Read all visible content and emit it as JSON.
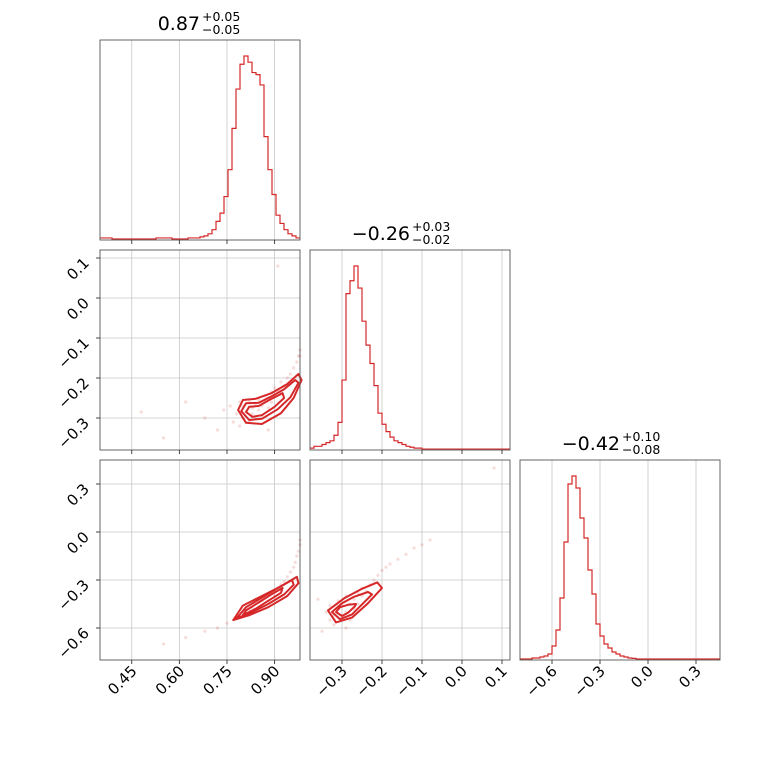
{
  "chart_data": {
    "type": "corner",
    "color": "#d62728",
    "parameters": [
      {
        "title": {
          "median": "0.87",
          "upper": "+0.05",
          "lower": "−0.05"
        },
        "range": [
          0.35,
          0.98
        ],
        "ticks": [
          0.45,
          0.6,
          0.75,
          0.9
        ],
        "tick_labels": [
          "0.45",
          "0.60",
          "0.75",
          "0.90"
        ],
        "histogram": {
          "bins": [
            0.35,
            0.98
          ],
          "counts": [
            0.01,
            0.01,
            0.01,
            0.005,
            0.005,
            0.005,
            0.005,
            0.005,
            0.005,
            0.005,
            0.005,
            0.005,
            0.005,
            0.005,
            0.01,
            0.01,
            0.01,
            0.01,
            0.005,
            0.005,
            0.005,
            0.005,
            0.01,
            0.01,
            0.01,
            0.015,
            0.02,
            0.03,
            0.05,
            0.09,
            0.13,
            0.21,
            0.34,
            0.54,
            0.73,
            0.85,
            0.89,
            0.86,
            0.81,
            0.8,
            0.75,
            0.5,
            0.34,
            0.22,
            0.12,
            0.08,
            0.05,
            0.03,
            0.02,
            0.01
          ]
        }
      },
      {
        "title": {
          "median": "−0.26",
          "upper": "+0.03",
          "lower": "−0.02"
        },
        "range": [
          -0.38,
          0.12
        ],
        "ticks": [
          -0.3,
          -0.2,
          -0.1,
          0.0,
          0.1
        ],
        "tick_labels": [
          "−0.3",
          "−0.2",
          "−0.1",
          "0.0",
          "0.1"
        ],
        "histogram": {
          "bins": [
            -0.38,
            0.12
          ],
          "counts": [
            0.01,
            0.02,
            0.02,
            0.03,
            0.04,
            0.05,
            0.08,
            0.15,
            0.38,
            0.85,
            0.92,
            1.0,
            0.88,
            0.7,
            0.57,
            0.47,
            0.35,
            0.2,
            0.14,
            0.1,
            0.07,
            0.05,
            0.04,
            0.03,
            0.02,
            0.015,
            0.01,
            0.01,
            0.005,
            0.005,
            0.005,
            0.005,
            0.005,
            0.005,
            0.005,
            0.005,
            0.005,
            0.005,
            0.005,
            0.005,
            0.005,
            0.005,
            0.005,
            0.005,
            0.005,
            0.005,
            0.005,
            0.005,
            0.005,
            0.005
          ]
        }
      },
      {
        "title": {
          "median": "−0.42",
          "upper": "+0.10",
          "lower": "−0.08"
        },
        "range": [
          -0.8,
          0.45
        ],
        "ticks": [
          -0.6,
          -0.3,
          0.0,
          0.3
        ],
        "tick_labels": [
          "−0.6",
          "−0.3",
          "0.0",
          "0.3"
        ],
        "histogram": {
          "bins": [
            -0.8,
            0.45
          ],
          "counts": [
            0.005,
            0.005,
            0.005,
            0.01,
            0.01,
            0.015,
            0.02,
            0.03,
            0.07,
            0.15,
            0.31,
            0.59,
            0.88,
            0.92,
            0.86,
            0.71,
            0.61,
            0.45,
            0.33,
            0.18,
            0.12,
            0.08,
            0.06,
            0.04,
            0.03,
            0.02,
            0.015,
            0.01,
            0.008,
            0.005,
            0.005,
            0.005,
            0.005,
            0.005,
            0.005,
            0.005,
            0.005,
            0.005,
            0.005,
            0.005,
            0.005,
            0.005,
            0.005,
            0.005,
            0.005,
            0.005,
            0.005,
            0.005,
            0.005,
            0.005
          ]
        }
      }
    ],
    "pairs": [
      {
        "x_param": 0,
        "y_param": 1,
        "scatter": [
          [
            0.48,
            -0.285
          ],
          [
            0.55,
            -0.35
          ],
          [
            0.62,
            -0.26
          ],
          [
            0.68,
            -0.3
          ],
          [
            0.72,
            -0.33
          ],
          [
            0.74,
            -0.28
          ],
          [
            0.76,
            -0.27
          ],
          [
            0.77,
            -0.31
          ],
          [
            0.78,
            -0.29
          ],
          [
            0.79,
            -0.26
          ],
          [
            0.8,
            -0.3
          ],
          [
            0.8,
            -0.27
          ],
          [
            0.81,
            -0.285
          ],
          [
            0.82,
            -0.31
          ],
          [
            0.82,
            -0.26
          ],
          [
            0.83,
            -0.29
          ],
          [
            0.83,
            -0.275
          ],
          [
            0.84,
            -0.3
          ],
          [
            0.84,
            -0.265
          ],
          [
            0.85,
            -0.28
          ],
          [
            0.85,
            -0.255
          ],
          [
            0.86,
            -0.27
          ],
          [
            0.86,
            -0.295
          ],
          [
            0.87,
            -0.26
          ],
          [
            0.87,
            -0.245
          ],
          [
            0.88,
            -0.275
          ],
          [
            0.88,
            -0.25
          ],
          [
            0.89,
            -0.26
          ],
          [
            0.89,
            -0.235
          ],
          [
            0.9,
            -0.245
          ],
          [
            0.9,
            -0.225
          ],
          [
            0.91,
            -0.23
          ],
          [
            0.92,
            -0.235
          ],
          [
            0.92,
            -0.21
          ],
          [
            0.93,
            -0.22
          ],
          [
            0.94,
            -0.2
          ],
          [
            0.95,
            -0.19
          ],
          [
            0.96,
            -0.175
          ],
          [
            0.97,
            -0.16
          ],
          [
            0.975,
            -0.145
          ],
          [
            0.98,
            -0.13
          ],
          [
            0.98,
            -0.145
          ],
          [
            0.91,
            0.08
          ],
          [
            0.88,
            -0.33
          ],
          [
            0.79,
            -0.32
          ]
        ],
        "contours": [
          [
            [
              0.81,
              -0.285
            ],
            [
              0.83,
              -0.297
            ],
            [
              0.86,
              -0.293
            ],
            [
              0.9,
              -0.272
            ],
            [
              0.93,
              -0.25
            ],
            [
              0.925,
              -0.238
            ],
            [
              0.89,
              -0.252
            ],
            [
              0.85,
              -0.27
            ],
            [
              0.82,
              -0.272
            ],
            [
              0.81,
              -0.285
            ]
          ],
          [
            [
              0.795,
              -0.283
            ],
            [
              0.82,
              -0.305
            ],
            [
              0.86,
              -0.302
            ],
            [
              0.91,
              -0.278
            ],
            [
              0.95,
              -0.248
            ],
            [
              0.975,
              -0.212
            ],
            [
              0.965,
              -0.205
            ],
            [
              0.93,
              -0.228
            ],
            [
              0.89,
              -0.246
            ],
            [
              0.85,
              -0.262
            ],
            [
              0.81,
              -0.263
            ],
            [
              0.795,
              -0.283
            ]
          ],
          [
            [
              0.785,
              -0.28
            ],
            [
              0.81,
              -0.312
            ],
            [
              0.86,
              -0.315
            ],
            [
              0.92,
              -0.288
            ],
            [
              0.96,
              -0.25
            ],
            [
              0.985,
              -0.205
            ],
            [
              0.975,
              -0.19
            ],
            [
              0.94,
              -0.215
            ],
            [
              0.89,
              -0.238
            ],
            [
              0.84,
              -0.252
            ],
            [
              0.8,
              -0.255
            ],
            [
              0.785,
              -0.28
            ]
          ]
        ]
      },
      {
        "x_param": 0,
        "y_param": 2,
        "scatter": [
          [
            0.55,
            -0.7
          ],
          [
            0.62,
            -0.66
          ],
          [
            0.68,
            -0.62
          ],
          [
            0.72,
            -0.6
          ],
          [
            0.75,
            -0.57
          ],
          [
            0.77,
            -0.55
          ],
          [
            0.78,
            -0.53
          ],
          [
            0.79,
            -0.52
          ],
          [
            0.8,
            -0.5
          ],
          [
            0.81,
            -0.49
          ],
          [
            0.82,
            -0.48
          ],
          [
            0.83,
            -0.47
          ],
          [
            0.84,
            -0.45
          ],
          [
            0.85,
            -0.44
          ],
          [
            0.86,
            -0.43
          ],
          [
            0.87,
            -0.41
          ],
          [
            0.88,
            -0.4
          ],
          [
            0.89,
            -0.38
          ],
          [
            0.9,
            -0.37
          ],
          [
            0.91,
            -0.35
          ],
          [
            0.92,
            -0.33
          ],
          [
            0.93,
            -0.31
          ],
          [
            0.94,
            -0.28
          ],
          [
            0.95,
            -0.25
          ],
          [
            0.96,
            -0.22
          ],
          [
            0.965,
            -0.19
          ],
          [
            0.97,
            -0.15
          ],
          [
            0.975,
            -0.12
          ],
          [
            0.98,
            -0.08
          ],
          [
            0.98,
            -0.05
          ],
          [
            0.82,
            -0.52
          ],
          [
            0.86,
            -0.47
          ],
          [
            0.88,
            -0.43
          ],
          [
            0.9,
            -0.4
          ],
          [
            0.84,
            -0.42
          ]
        ],
        "contours": [
          [
            [
              0.8,
              -0.52
            ],
            [
              0.84,
              -0.48
            ],
            [
              0.88,
              -0.43
            ],
            [
              0.92,
              -0.38
            ],
            [
              0.925,
              -0.35
            ],
            [
              0.89,
              -0.39
            ],
            [
              0.85,
              -0.44
            ],
            [
              0.81,
              -0.49
            ],
            [
              0.8,
              -0.52
            ]
          ],
          [
            [
              0.78,
              -0.54
            ],
            [
              0.83,
              -0.5
            ],
            [
              0.88,
              -0.45
            ],
            [
              0.93,
              -0.39
            ],
            [
              0.96,
              -0.33
            ],
            [
              0.955,
              -0.3
            ],
            [
              0.91,
              -0.35
            ],
            [
              0.86,
              -0.41
            ],
            [
              0.81,
              -0.47
            ],
            [
              0.78,
              -0.54
            ]
          ],
          [
            [
              0.77,
              -0.55
            ],
            [
              0.82,
              -0.52
            ],
            [
              0.88,
              -0.47
            ],
            [
              0.94,
              -0.4
            ],
            [
              0.975,
              -0.32
            ],
            [
              0.97,
              -0.28
            ],
            [
              0.92,
              -0.34
            ],
            [
              0.86,
              -0.4
            ],
            [
              0.8,
              -0.46
            ],
            [
              0.77,
              -0.55
            ]
          ]
        ]
      },
      {
        "x_param": 1,
        "y_param": 2,
        "scatter": [
          [
            -0.34,
            -0.5
          ],
          [
            -0.33,
            -0.55
          ],
          [
            -0.33,
            -0.46
          ],
          [
            -0.32,
            -0.52
          ],
          [
            -0.32,
            -0.58
          ],
          [
            -0.31,
            -0.48
          ],
          [
            -0.31,
            -0.43
          ],
          [
            -0.3,
            -0.53
          ],
          [
            -0.3,
            -0.46
          ],
          [
            -0.29,
            -0.5
          ],
          [
            -0.29,
            -0.4
          ],
          [
            -0.28,
            -0.45
          ],
          [
            -0.28,
            -0.55
          ],
          [
            -0.27,
            -0.42
          ],
          [
            -0.27,
            -0.48
          ],
          [
            -0.26,
            -0.38
          ],
          [
            -0.26,
            -0.45
          ],
          [
            -0.25,
            -0.4
          ],
          [
            -0.25,
            -0.35
          ],
          [
            -0.24,
            -0.37
          ],
          [
            -0.23,
            -0.33
          ],
          [
            -0.22,
            -0.3
          ],
          [
            -0.21,
            -0.27
          ],
          [
            -0.2,
            -0.24
          ],
          [
            -0.19,
            -0.22
          ],
          [
            -0.18,
            -0.2
          ],
          [
            -0.16,
            -0.17
          ],
          [
            -0.14,
            -0.14
          ],
          [
            -0.12,
            -0.1
          ],
          [
            -0.1,
            -0.08
          ],
          [
            -0.08,
            -0.05
          ],
          [
            0.08,
            0.4
          ],
          [
            -0.36,
            -0.42
          ],
          [
            -0.35,
            -0.62
          ],
          [
            -0.29,
            -0.6
          ]
        ],
        "contours": [
          [
            [
              -0.315,
              -0.5
            ],
            [
              -0.3,
              -0.525
            ],
            [
              -0.285,
              -0.505
            ],
            [
              -0.268,
              -0.465
            ],
            [
              -0.265,
              -0.45
            ],
            [
              -0.285,
              -0.455
            ],
            [
              -0.305,
              -0.47
            ],
            [
              -0.315,
              -0.5
            ]
          ],
          [
            [
              -0.325,
              -0.5
            ],
            [
              -0.305,
              -0.545
            ],
            [
              -0.275,
              -0.515
            ],
            [
              -0.245,
              -0.44
            ],
            [
              -0.225,
              -0.39
            ],
            [
              -0.235,
              -0.375
            ],
            [
              -0.27,
              -0.405
            ],
            [
              -0.3,
              -0.445
            ],
            [
              -0.325,
              -0.5
            ]
          ],
          [
            [
              -0.335,
              -0.49
            ],
            [
              -0.315,
              -0.565
            ],
            [
              -0.275,
              -0.535
            ],
            [
              -0.235,
              -0.445
            ],
            [
              -0.2,
              -0.35
            ],
            [
              -0.212,
              -0.315
            ],
            [
              -0.25,
              -0.355
            ],
            [
              -0.295,
              -0.415
            ],
            [
              -0.335,
              -0.49
            ]
          ]
        ]
      }
    ]
  }
}
